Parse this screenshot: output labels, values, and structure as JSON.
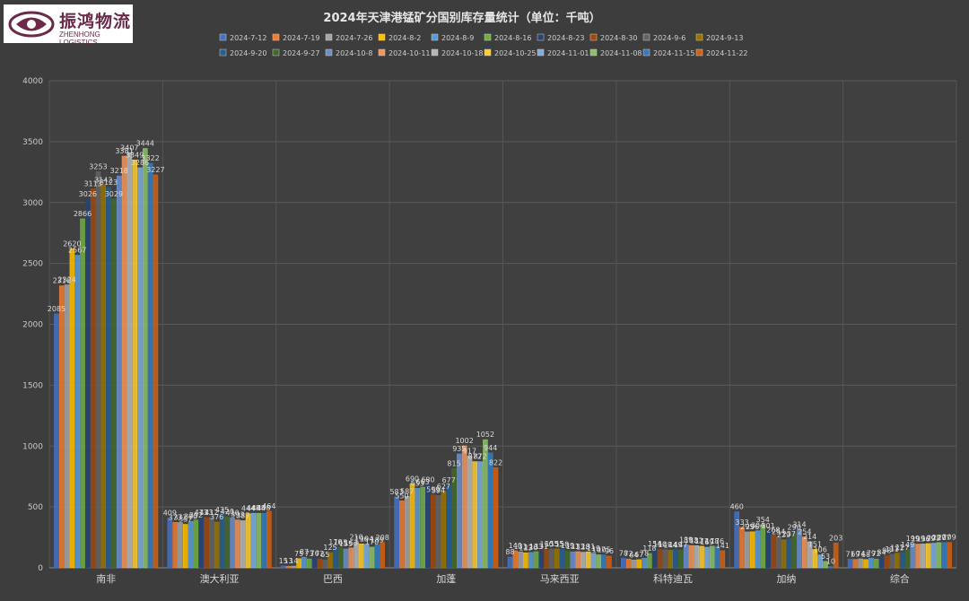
{
  "logo": {
    "name": "振鸿物流",
    "subtitle": "ZHENHONG LOGISTICS"
  },
  "chart_data": {
    "type": "bar",
    "title": "2024年天津港锰矿分国别库存量统计（单位：千吨）",
    "categories": [
      "南非",
      "澳大利亚",
      "巴西",
      "加蓬",
      "马来西亚",
      "科特迪瓦",
      "加纳",
      "综合"
    ],
    "ylim": [
      0,
      4000
    ],
    "yticks": [
      0,
      500,
      1000,
      1500,
      2000,
      2500,
      3000,
      3500,
      4000
    ],
    "grid": true,
    "legend_position": "top",
    "series": [
      {
        "name": "2024-7-12",
        "color": "#4472c4",
        "values": [
          2085,
          409,
          15,
          583,
          88,
          78,
          460,
          71
        ]
      },
      {
        "name": "2024-7-19",
        "color": "#ed7d31",
        "values": [
          2316,
          373,
          13,
          550,
          140,
          72,
          333,
          69
        ]
      },
      {
        "name": "2024-7-26",
        "color": "#a5a5a5",
        "values": [
          2324,
          372,
          14,
          587,
          131,
          64,
          295,
          74
        ]
      },
      {
        "name": "2024-8-2",
        "color": "#ffc000",
        "values": [
          2620,
          357,
          75,
          690,
          123,
          67,
          296,
          68
        ]
      },
      {
        "name": "2024-8-9",
        "color": "#5b9bd5",
        "values": [
          2567,
          380,
          87,
          653,
          126,
          78,
          304,
          79
        ]
      },
      {
        "name": "2024-8-16",
        "color": "#70ad47",
        "values": [
          2866,
          392,
          73,
          663,
          133,
          118,
          354,
          72
        ]
      },
      {
        "name": "2024-8-23",
        "color": "#264478",
        "values": [
          3026,
          413,
          76,
          680,
          131,
          154,
          301,
          84
        ]
      },
      {
        "name": "2024-8-30",
        "color": "#9e480e",
        "values": [
          3113,
          413,
          72,
          599,
          150,
          150,
          268,
          98
        ]
      },
      {
        "name": "2024-9-6",
        "color": "#636363",
        "values": [
          3253,
          412,
          65,
          594,
          155,
          149,
          254,
          111
        ]
      },
      {
        "name": "2024-9-13",
        "color": "#997300",
        "values": [
          3142,
          376,
          125,
          627,
          155,
          144,
          229,
          121
        ]
      },
      {
        "name": "2024-9-20",
        "color": "#255e91",
        "values": [
          3123,
          435,
          170,
          677,
          150,
          149,
          237,
          127
        ]
      },
      {
        "name": "2024-9-27",
        "color": "#43682b",
        "values": [
          3029,
          420,
          165,
          815,
          139,
          147,
          290,
          149
        ]
      },
      {
        "name": "2024-10-8",
        "color": "#698ed0",
        "values": [
          3218,
          410,
          155,
          935,
          131,
          189,
          314,
          199
        ]
      },
      {
        "name": "2024-10-11",
        "color": "#f1975a",
        "values": [
          3381,
          393,
          163,
          1002,
          133,
          183,
          254,
          195
        ]
      },
      {
        "name": "2024-10-18",
        "color": "#b7b7b7",
        "values": [
          3407,
          387,
          210,
          917,
          128,
          182,
          214,
          196
        ]
      },
      {
        "name": "2024-10-25",
        "color": "#ffcd33",
        "values": [
          3349,
          444,
          196,
          872,
          131,
          177,
          151,
          199
        ]
      },
      {
        "name": "2024-11-01",
        "color": "#7cafdd",
        "values": [
          3286,
          448,
          194,
          872,
          119,
          169,
          106,
          202
        ]
      },
      {
        "name": "2024-11-08",
        "color": "#8cc168",
        "values": [
          3444,
          448,
          170,
          1052,
          107,
          178,
          53,
          207
        ]
      },
      {
        "name": "2024-11-15",
        "color": "#327dc2",
        "values": [
          3322,
          448,
          189,
          944,
          105,
          176,
          10,
          207
        ]
      },
      {
        "name": "2024-11-22",
        "color": "#d26012",
        "values": [
          3227,
          464,
          208,
          822,
          96,
          141,
          203,
          209
        ]
      }
    ]
  }
}
